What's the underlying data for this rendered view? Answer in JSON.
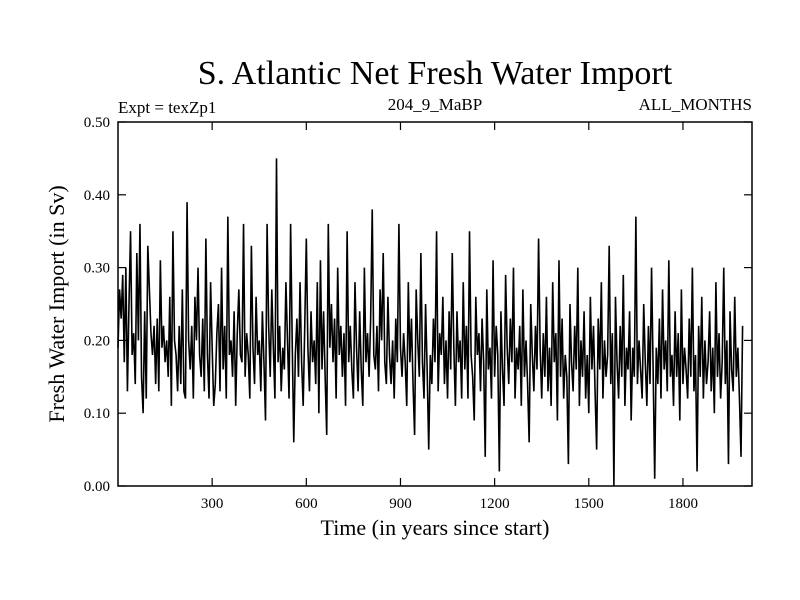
{
  "chart_data": {
    "type": "line",
    "title": "S. Atlantic Net Fresh Water Import",
    "subtitle_left": "Expt = texZp1",
    "subtitle_center": "204_9_MaBP",
    "subtitle_right": "ALL_MONTHS",
    "xlabel": "Time (in years since start)",
    "ylabel": "Fresh Water Import (in Sv)",
    "xlim": [
      0,
      2020
    ],
    "ylim": [
      0.0,
      0.5
    ],
    "x_ticks": [
      300,
      600,
      900,
      1200,
      1500,
      1800
    ],
    "x_tick_labels": [
      "300",
      "600",
      "900",
      "1200",
      "1500",
      "1800"
    ],
    "y_ticks": [
      0.0,
      0.1,
      0.2,
      0.3,
      0.4,
      0.5
    ],
    "y_tick_labels": [
      "0.00",
      "0.10",
      "0.20",
      "0.30",
      "0.40",
      "0.50"
    ],
    "series": [
      {
        "name": "Net Fresh Water Import",
        "x_start": 0,
        "x_step": 5,
        "values": [
          0.19,
          0.27,
          0.23,
          0.29,
          0.17,
          0.3,
          0.13,
          0.25,
          0.35,
          0.18,
          0.21,
          0.14,
          0.32,
          0.2,
          0.36,
          0.15,
          0.1,
          0.24,
          0.12,
          0.33,
          0.27,
          0.21,
          0.18,
          0.22,
          0.14,
          0.23,
          0.13,
          0.31,
          0.19,
          0.22,
          0.17,
          0.2,
          0.15,
          0.26,
          0.11,
          0.35,
          0.2,
          0.18,
          0.13,
          0.22,
          0.14,
          0.27,
          0.13,
          0.12,
          0.39,
          0.2,
          0.16,
          0.22,
          0.12,
          0.26,
          0.2,
          0.3,
          0.18,
          0.15,
          0.23,
          0.13,
          0.34,
          0.18,
          0.12,
          0.28,
          0.19,
          0.11,
          0.14,
          0.21,
          0.25,
          0.13,
          0.3,
          0.16,
          0.22,
          0.12,
          0.37,
          0.18,
          0.2,
          0.15,
          0.24,
          0.11,
          0.21,
          0.27,
          0.18,
          0.17,
          0.36,
          0.15,
          0.21,
          0.18,
          0.12,
          0.33,
          0.19,
          0.14,
          0.26,
          0.18,
          0.2,
          0.13,
          0.24,
          0.17,
          0.09,
          0.36,
          0.22,
          0.15,
          0.27,
          0.19,
          0.12,
          0.45,
          0.17,
          0.22,
          0.13,
          0.19,
          0.16,
          0.28,
          0.2,
          0.12,
          0.36,
          0.2,
          0.06,
          0.18,
          0.23,
          0.15,
          0.28,
          0.17,
          0.11,
          0.22,
          0.34,
          0.19,
          0.13,
          0.24,
          0.17,
          0.2,
          0.14,
          0.28,
          0.1,
          0.31,
          0.16,
          0.24,
          0.15,
          0.07,
          0.36,
          0.19,
          0.25,
          0.17,
          0.23,
          0.12,
          0.3,
          0.18,
          0.22,
          0.15,
          0.21,
          0.11,
          0.35,
          0.17,
          0.22,
          0.16,
          0.12,
          0.28,
          0.19,
          0.13,
          0.24,
          0.16,
          0.11,
          0.3,
          0.17,
          0.21,
          0.15,
          0.23,
          0.38,
          0.18,
          0.16,
          0.22,
          0.13,
          0.27,
          0.2,
          0.32,
          0.17,
          0.14,
          0.26,
          0.18,
          0.14,
          0.2,
          0.12,
          0.23,
          0.17,
          0.36,
          0.19,
          0.15,
          0.21,
          0.17,
          0.11,
          0.28,
          0.17,
          0.23,
          0.14,
          0.07,
          0.27,
          0.2,
          0.15,
          0.32,
          0.17,
          0.12,
          0.25,
          0.16,
          0.05,
          0.18,
          0.14,
          0.23,
          0.17,
          0.35,
          0.13,
          0.21,
          0.18,
          0.26,
          0.14,
          0.2,
          0.12,
          0.24,
          0.16,
          0.32,
          0.19,
          0.11,
          0.24,
          0.17,
          0.2,
          0.12,
          0.28,
          0.16,
          0.22,
          0.12,
          0.35,
          0.18,
          0.15,
          0.09,
          0.26,
          0.18,
          0.21,
          0.13,
          0.23,
          0.17,
          0.04,
          0.27,
          0.16,
          0.19,
          0.12,
          0.31,
          0.15,
          0.22,
          0.18,
          0.02,
          0.24,
          0.16,
          0.11,
          0.29,
          0.19,
          0.14,
          0.23,
          0.17,
          0.3,
          0.12,
          0.19,
          0.16,
          0.22,
          0.11,
          0.27,
          0.15,
          0.2,
          0.14,
          0.06,
          0.25,
          0.18,
          0.13,
          0.22,
          0.16,
          0.34,
          0.19,
          0.12,
          0.21,
          0.15,
          0.26,
          0.13,
          0.19,
          0.11,
          0.28,
          0.17,
          0.21,
          0.09,
          0.31,
          0.15,
          0.23,
          0.12,
          0.18,
          0.15,
          0.03,
          0.25,
          0.17,
          0.13,
          0.22,
          0.16,
          0.3,
          0.11,
          0.2,
          0.15,
          0.24,
          0.12,
          0.18,
          0.1,
          0.26,
          0.16,
          0.22,
          0.13,
          0.05,
          0.23,
          0.16,
          0.28,
          0.12,
          0.2,
          0.15,
          0.18,
          0.33,
          0.14,
          0.21,
          0.0,
          0.26,
          0.17,
          0.12,
          0.22,
          0.15,
          0.29,
          0.11,
          0.19,
          0.16,
          0.24,
          0.09,
          0.19,
          0.15,
          0.37,
          0.14,
          0.2,
          0.16,
          0.12,
          0.25,
          0.17,
          0.11,
          0.22,
          0.14,
          0.3,
          0.16,
          0.01,
          0.19,
          0.14,
          0.23,
          0.12,
          0.27,
          0.16,
          0.2,
          0.13,
          0.31,
          0.15,
          0.18,
          0.11,
          0.24,
          0.15,
          0.21,
          0.09,
          0.27,
          0.14,
          0.19,
          0.16,
          0.12,
          0.23,
          0.15,
          0.3,
          0.13,
          0.18,
          0.02,
          0.22,
          0.15,
          0.26,
          0.12,
          0.2,
          0.14,
          0.17,
          0.24,
          0.13,
          0.19,
          0.1,
          0.28,
          0.15,
          0.21,
          0.12,
          0.17,
          0.3,
          0.14,
          0.2,
          0.03,
          0.24,
          0.16,
          0.13,
          0.26,
          0.15,
          0.19,
          0.12,
          0.04,
          0.22
        ]
      }
    ]
  }
}
